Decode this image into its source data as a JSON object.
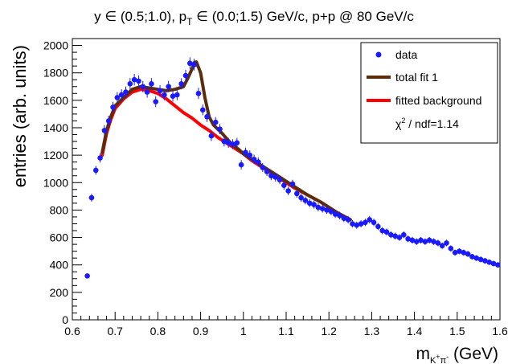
{
  "chart_data": {
    "type": "scatter",
    "title_parts": {
      "y": "y",
      "in1": " ∈ (0.5;1.0), p",
      "pt_sub": "T",
      "in2": " ∈ (0.0;1.5) GeV/c, p+p @ 80 GeV/c"
    },
    "ylabel": "entries (arb. units)",
    "xlabel_parts": {
      "m": "m",
      "sub": "K",
      "sup1": "+",
      "pi": "π",
      "sup2": "-",
      "unit": " (GeV)"
    },
    "xlim": [
      0.6,
      1.6
    ],
    "ylim": [
      0,
      2050
    ],
    "xticks": [
      "0.6",
      "0.7",
      "0.8",
      "0.9",
      "1",
      "1.1",
      "1.2",
      "1.3",
      "1.4",
      "1.5",
      "1.6"
    ],
    "yticks": [
      "0",
      "200",
      "400",
      "600",
      "800",
      "1000",
      "1200",
      "1400",
      "1600",
      "1800",
      "2000"
    ],
    "legend": {
      "position": "top-right",
      "entries": [
        "data",
        "total fit 1",
        "fitted background"
      ],
      "chi2_chi": "χ",
      "chi2_sup": "2",
      "chi2_rest": " / ndf=1.14"
    },
    "colors": {
      "data": "#1a1aff",
      "total_fit": "#5a2d0c",
      "background": "#ff0000"
    },
    "series": [
      {
        "name": "data",
        "x": [
          0.635,
          0.645,
          0.655,
          0.665,
          0.675,
          0.685,
          0.695,
          0.705,
          0.715,
          0.725,
          0.735,
          0.745,
          0.755,
          0.765,
          0.775,
          0.785,
          0.795,
          0.805,
          0.815,
          0.825,
          0.835,
          0.845,
          0.855,
          0.865,
          0.875,
          0.885,
          0.895,
          0.905,
          0.915,
          0.925,
          0.935,
          0.945,
          0.955,
          0.965,
          0.975,
          0.985,
          0.995,
          1.005,
          1.015,
          1.025,
          1.035,
          1.045,
          1.055,
          1.065,
          1.075,
          1.085,
          1.095,
          1.105,
          1.115,
          1.125,
          1.135,
          1.145,
          1.155,
          1.165,
          1.175,
          1.185,
          1.195,
          1.205,
          1.215,
          1.225,
          1.235,
          1.245,
          1.255,
          1.265,
          1.275,
          1.285,
          1.295,
          1.305,
          1.315,
          1.325,
          1.335,
          1.345,
          1.355,
          1.365,
          1.375,
          1.385,
          1.395,
          1.405,
          1.415,
          1.425,
          1.435,
          1.445,
          1.455,
          1.465,
          1.475,
          1.485,
          1.495,
          1.505,
          1.515,
          1.525,
          1.535,
          1.545,
          1.555,
          1.565,
          1.575,
          1.585,
          1.595
        ],
        "y": [
          320,
          890,
          1090,
          1180,
          1380,
          1450,
          1550,
          1620,
          1640,
          1660,
          1720,
          1750,
          1740,
          1700,
          1660,
          1720,
          1590,
          1670,
          1640,
          1700,
          1630,
          1640,
          1720,
          1780,
          1870,
          1860,
          1650,
          1530,
          1480,
          1340,
          1440,
          1390,
          1300,
          1290,
          1280,
          1290,
          1130,
          1220,
          1200,
          1170,
          1150,
          1110,
          1080,
          1050,
          1040,
          1020,
          980,
          940,
          990,
          920,
          890,
          870,
          850,
          840,
          820,
          810,
          800,
          790,
          770,
          760,
          740,
          730,
          700,
          690,
          700,
          710,
          730,
          710,
          680,
          650,
          640,
          620,
          610,
          600,
          620,
          590,
          580,
          570,
          580,
          570,
          580,
          570,
          560,
          540,
          560,
          520,
          490,
          500,
          490,
          480,
          460,
          450,
          440,
          430,
          420,
          410,
          400
        ],
        "err": [
          15,
          28,
          32,
          34,
          38,
          38,
          39,
          40,
          40,
          41,
          42,
          42,
          42,
          41,
          41,
          42,
          40,
          41,
          40,
          41,
          40,
          40,
          41,
          42,
          43,
          43,
          41,
          39,
          38,
          37,
          38,
          37,
          36,
          36,
          36,
          36,
          34,
          35,
          35,
          34,
          34,
          33,
          33,
          32,
          32,
          32,
          31,
          31,
          31,
          30,
          30,
          29,
          29,
          29,
          29,
          28,
          28,
          28,
          28,
          28,
          27,
          27,
          26,
          26,
          26,
          27,
          27,
          27,
          26,
          26,
          25,
          25,
          25,
          24,
          25,
          24,
          24,
          24,
          24,
          24,
          24,
          24,
          24,
          23,
          24,
          23,
          22,
          22,
          22,
          22,
          21,
          21,
          21,
          21,
          20,
          20,
          20
        ]
      },
      {
        "name": "total fit 1",
        "x": [
          0.67,
          0.68,
          0.69,
          0.7,
          0.72,
          0.74,
          0.76,
          0.78,
          0.8,
          0.82,
          0.84,
          0.86,
          0.87,
          0.88,
          0.885,
          0.89,
          0.9,
          0.91,
          0.92,
          0.93,
          0.95,
          0.97,
          0.99,
          1.0,
          1.02,
          1.05,
          1.08,
          1.1,
          1.12,
          1.15,
          1.18,
          1.2,
          1.22,
          1.25
        ],
        "y": [
          1220,
          1380,
          1480,
          1560,
          1620,
          1680,
          1700,
          1690,
          1680,
          1670,
          1680,
          1700,
          1760,
          1830,
          1875,
          1880,
          1800,
          1620,
          1480,
          1420,
          1360,
          1290,
          1240,
          1210,
          1170,
          1110,
          1050,
          1010,
          970,
          910,
          860,
          820,
          780,
          730
        ]
      },
      {
        "name": "fitted background",
        "x": [
          0.67,
          0.68,
          0.69,
          0.7,
          0.72,
          0.74,
          0.76,
          0.78,
          0.8,
          0.82,
          0.84,
          0.86,
          0.88,
          0.9,
          0.92,
          0.94,
          0.96,
          0.98,
          1.0,
          1.02,
          1.05,
          1.08,
          1.1,
          1.12,
          1.15,
          1.18,
          1.2,
          1.22,
          1.25
        ],
        "y": [
          1200,
          1360,
          1460,
          1540,
          1610,
          1660,
          1680,
          1670,
          1650,
          1610,
          1560,
          1510,
          1470,
          1420,
          1380,
          1330,
          1290,
          1250,
          1210,
          1160,
          1100,
          1040,
          1000,
          960,
          910,
          860,
          820,
          780,
          730
        ]
      }
    ]
  }
}
